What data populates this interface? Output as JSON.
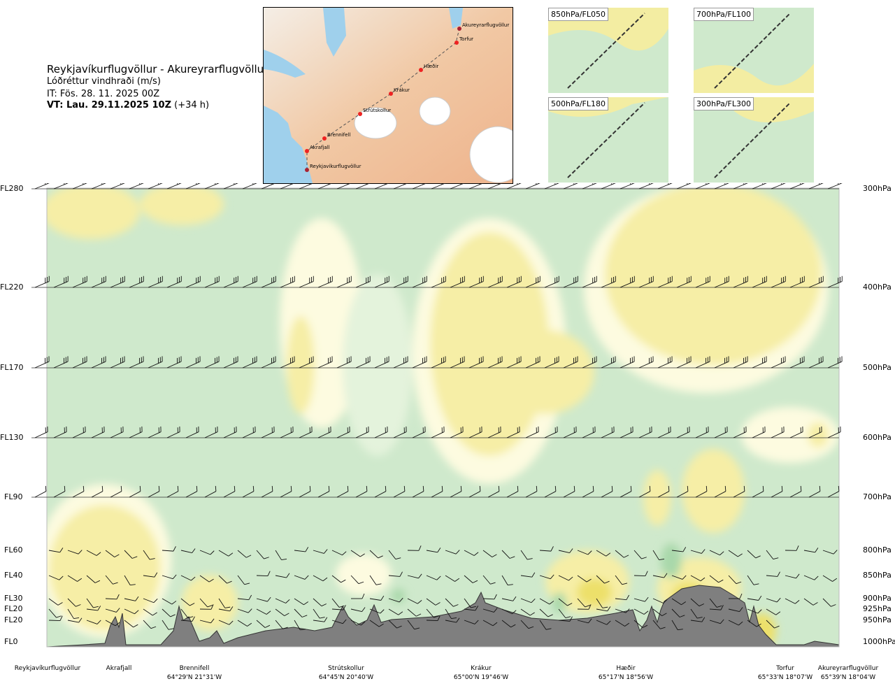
{
  "header": {
    "title": "Reykjavíkurflugvöllur - Akureyrarflugvöllur",
    "subtitle": "Lóðréttur vindhraði (m/s)",
    "init": "IT: Fös. 28. 11. 2025 00Z",
    "valid_bold": "VT: Lau. 29.11.2025 10Z",
    "valid_rest": "(+34 h)"
  },
  "route_map": {
    "points": [
      "Akureyrarflugvöllur",
      "Torfur",
      "Hæðir",
      "Krákur",
      "Strútskollur",
      "Brennifell",
      "Akrafjall",
      "Reykjavíkurflugvöllur"
    ]
  },
  "thumbnails": [
    {
      "label": "850hPa/FL050"
    },
    {
      "label": "700hPa/FL100"
    },
    {
      "label": "500hPa/FL180"
    },
    {
      "label": "300hPa/FL300"
    }
  ],
  "colors": {
    "green": "#cfe9cc",
    "light_green": "#e4f3dc",
    "pale_yellow": "#fdfbe0",
    "yellow": "#f6eea6",
    "dark_yellow": "#ede06a",
    "mid_green": "#a9d8aa",
    "terrain": "#7f7f7f"
  },
  "chart_data": {
    "type": "heatmap",
    "title": "Lóðréttur vindhraði (m/s)",
    "left_axis": [
      "FL280",
      "FL220",
      "FL170",
      "FL130",
      "FL90",
      "FL60",
      "FL40",
      "FL30",
      "FL20",
      "FL20",
      "FL0"
    ],
    "right_axis": [
      "300hPa",
      "400hPa",
      "500hPa",
      "600hPa",
      "700hPa",
      "800hPa",
      "850hPa",
      "900hPa",
      "925hPa",
      "950hPa",
      "1000hPa"
    ],
    "waypoints": [
      {
        "name": "Reykjavíkurflugvöllur",
        "coord": ""
      },
      {
        "name": "Akrafjall",
        "coord": ""
      },
      {
        "name": "Brennifell",
        "coord": "64°29'N 21°31'W"
      },
      {
        "name": "Strútskollur",
        "coord": "64°45'N 20°40'W"
      },
      {
        "name": "Krákur",
        "coord": "65°00'N 19°46'W"
      },
      {
        "name": "Hæðir",
        "coord": "65°17'N 18°56'W"
      },
      {
        "name": "Torfur",
        "coord": "65°33'N 18°07'W"
      },
      {
        "name": "Akureyrarflugvöllur",
        "coord": "65°39'N 18°04'W"
      }
    ]
  }
}
